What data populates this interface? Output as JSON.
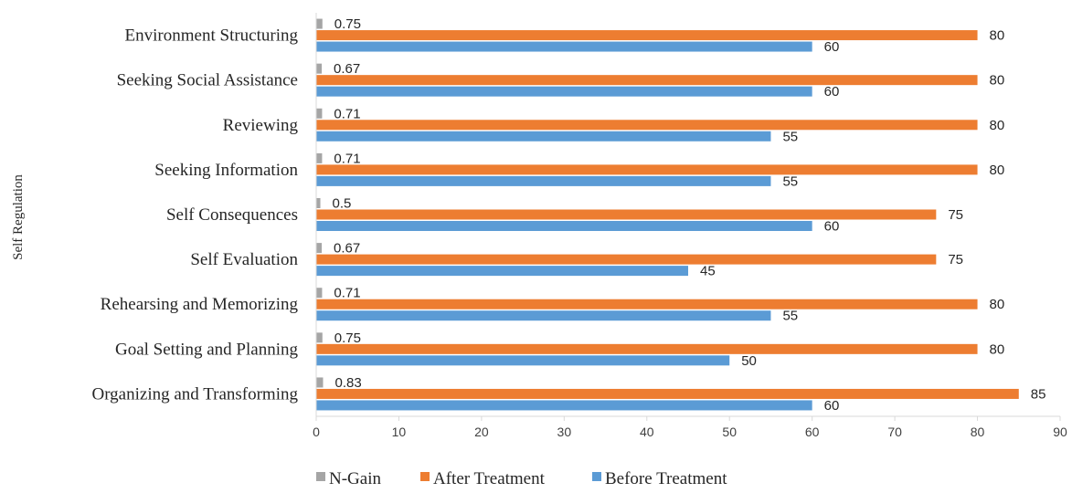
{
  "chart_data": {
    "type": "bar",
    "orientation": "horizontal",
    "ylabel": "Self Regulation",
    "categories": [
      "Environment Structuring",
      "Seeking Social Assistance",
      "Reviewing",
      "Seeking Information",
      "Self Consequences",
      "Self Evaluation",
      "Rehearsing and Memorizing",
      "Goal Setting and Planning",
      "Organizing and Transforming"
    ],
    "series": [
      {
        "name": "N-Gain",
        "color": "#a5a5a5",
        "values": [
          0.75,
          0.67,
          0.71,
          0.71,
          0.5,
          0.67,
          0.71,
          0.75,
          0.83
        ]
      },
      {
        "name": "After Treatment",
        "color": "#ed7d31",
        "values": [
          80,
          80,
          80,
          80,
          75,
          75,
          80,
          80,
          85
        ]
      },
      {
        "name": "Before Treatment",
        "color": "#5b9bd5",
        "values": [
          60,
          60,
          55,
          55,
          60,
          45,
          55,
          50,
          60
        ]
      }
    ],
    "xticks": [
      "0",
      "10",
      "20",
      "30",
      "40",
      "50",
      "60",
      "70",
      "80",
      "90"
    ],
    "xlim": [
      0,
      90
    ],
    "grid": false,
    "legend_position": "bottom"
  }
}
